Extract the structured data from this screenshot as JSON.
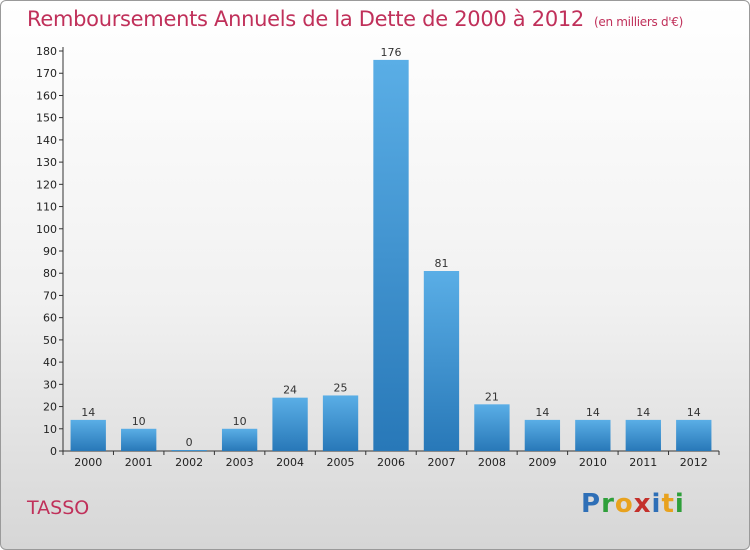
{
  "header": {
    "title": "Remboursements Annuels de la Dette de 2000 à 2012",
    "unit": "(en milliers d'€)"
  },
  "footer": {
    "commune": "TASSO",
    "logo_letters": [
      "P",
      "r",
      "o",
      "x",
      "i",
      "t",
      "i"
    ],
    "logo_colors": [
      "#2e6fb7",
      "#2e9f3a",
      "#e8a21e",
      "#c4302b",
      "#2e6fb7",
      "#e8a21e",
      "#2e9f3a"
    ]
  },
  "colors": {
    "bar_top": "#5aaee6",
    "bar_bottom": "#2878b8",
    "title": "#c0305a"
  },
  "chart_data": {
    "type": "bar",
    "title": "Remboursements Annuels de la Dette de 2000 à 2012",
    "xlabel": "",
    "ylabel": "",
    "categories": [
      "2000",
      "2001",
      "2002",
      "2003",
      "2004",
      "2005",
      "2006",
      "2007",
      "2008",
      "2009",
      "2010",
      "2011",
      "2012"
    ],
    "values": [
      14,
      10,
      0,
      10,
      24,
      25,
      176,
      81,
      21,
      14,
      14,
      14,
      14
    ],
    "ylim": [
      0,
      180
    ],
    "ytick_step": 10,
    "grid": false
  }
}
